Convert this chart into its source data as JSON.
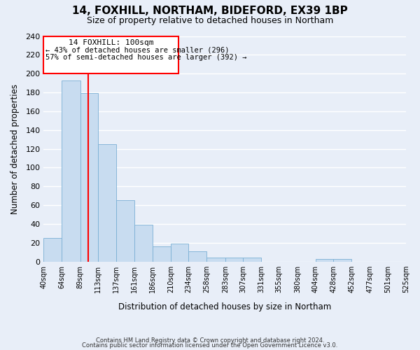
{
  "title": "14, FOXHILL, NORTHAM, BIDEFORD, EX39 1BP",
  "subtitle": "Size of property relative to detached houses in Northam",
  "xlabel": "Distribution of detached houses by size in Northam",
  "ylabel": "Number of detached properties",
  "bar_color": "#c8dcf0",
  "bar_edge_color": "#7aafd4",
  "redline_x": 100,
  "annotation_title": "14 FOXHILL: 100sqm",
  "annotation_line1": "← 43% of detached houses are smaller (296)",
  "annotation_line2": "57% of semi-detached houses are larger (392) →",
  "footer1": "Contains HM Land Registry data © Crown copyright and database right 2024.",
  "footer2": "Contains public sector information licensed under the Open Government Licence v3.0.",
  "bin_edges": [
    40,
    64,
    89,
    113,
    137,
    161,
    186,
    210,
    234,
    258,
    283,
    307,
    331,
    355,
    380,
    404,
    428,
    452,
    477,
    501,
    525
  ],
  "bin_labels": [
    "40sqm",
    "64sqm",
    "89sqm",
    "113sqm",
    "137sqm",
    "161sqm",
    "186sqm",
    "210sqm",
    "234sqm",
    "258sqm",
    "283sqm",
    "307sqm",
    "331sqm",
    "355sqm",
    "380sqm",
    "404sqm",
    "428sqm",
    "452sqm",
    "477sqm",
    "501sqm",
    "525sqm"
  ],
  "counts": [
    25,
    193,
    179,
    125,
    65,
    39,
    16,
    19,
    11,
    4,
    4,
    4,
    0,
    0,
    0,
    3,
    3,
    0,
    0,
    0
  ],
  "ylim": [
    0,
    240
  ],
  "yticks": [
    0,
    20,
    40,
    60,
    80,
    100,
    120,
    140,
    160,
    180,
    200,
    220,
    240
  ],
  "bg_color": "#e8eef8",
  "grid_color": "#ffffff"
}
